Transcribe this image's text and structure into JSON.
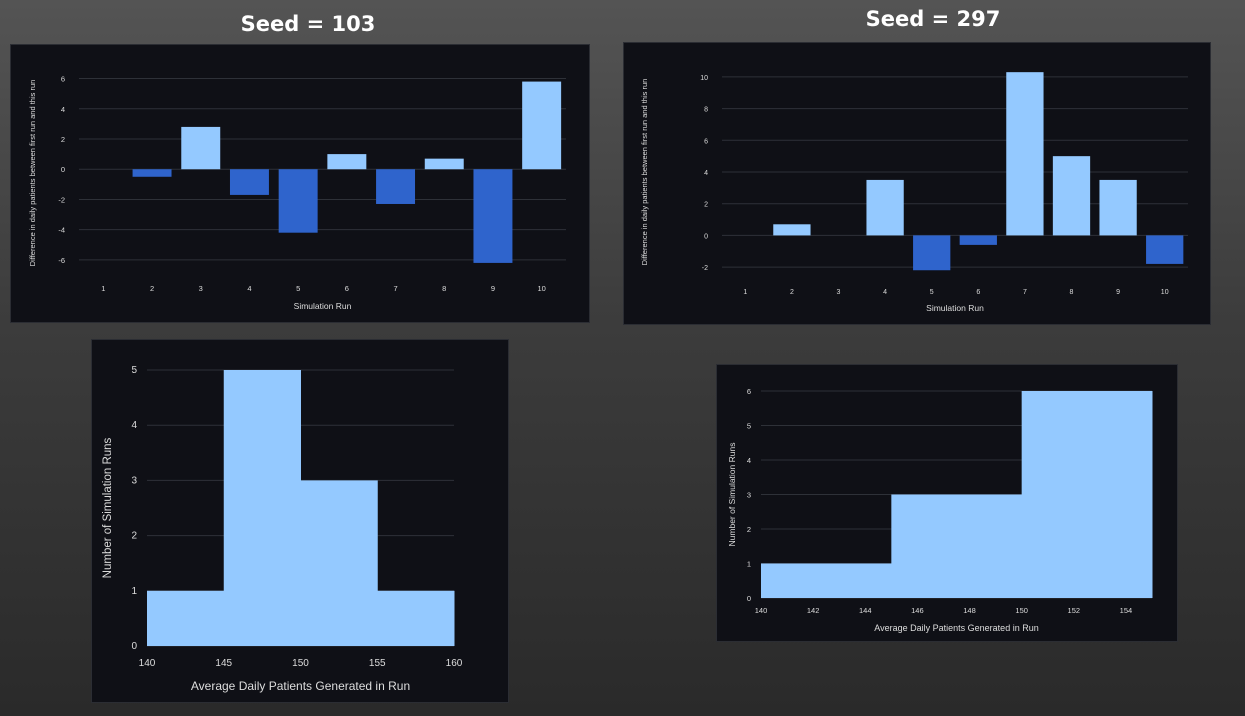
{
  "titles": {
    "left": "Seed = 103",
    "right": "Seed = 297"
  },
  "colors": {
    "positive": "#94c9ff",
    "negative": "#2f64cc",
    "grid": "#2e3138",
    "text": "#dddddd"
  },
  "chart_data": [
    {
      "type": "bar",
      "group": "Seed = 103",
      "xlabel": "Simulation Run",
      "ylabel": "Difference in daily patients between first run and this run",
      "categories": [
        "1",
        "2",
        "3",
        "4",
        "5",
        "6",
        "7",
        "8",
        "9",
        "10"
      ],
      "values": [
        0,
        -0.5,
        2.8,
        -1.7,
        -4.2,
        1.0,
        -2.3,
        0.7,
        -6.2,
        5.8
      ],
      "ylim": [
        -7,
        6.5
      ],
      "yticks": [
        -6,
        -4,
        -2,
        0,
        2,
        4,
        6
      ],
      "grid": true
    },
    {
      "type": "bar",
      "group": "Seed = 297",
      "xlabel": "Simulation Run",
      "ylabel": "Difference in daily patients between first run and this run",
      "categories": [
        "1",
        "2",
        "3",
        "4",
        "5",
        "6",
        "7",
        "8",
        "9",
        "10"
      ],
      "values": [
        0,
        0.7,
        0,
        3.5,
        -2.2,
        -0.6,
        10.3,
        5.0,
        3.5,
        -1.8
      ],
      "ylim": [
        -2.5,
        10.5
      ],
      "yticks": [
        -2,
        0,
        2,
        4,
        6,
        8,
        10
      ],
      "grid": true
    },
    {
      "type": "bar",
      "subtype": "histogram",
      "group": "Seed = 103",
      "xlabel": "Average Daily Patients Generated in Run",
      "ylabel": "Number of Simulation Runs",
      "bins": [
        [
          140,
          145
        ],
        [
          145,
          150
        ],
        [
          150,
          155
        ],
        [
          155,
          160
        ]
      ],
      "values": [
        1,
        5,
        3,
        1
      ],
      "xlim": [
        140,
        160
      ],
      "ylim": [
        0,
        5
      ],
      "xticks": [
        140,
        145,
        150,
        155,
        160
      ],
      "yticks": [
        0,
        1,
        2,
        3,
        4,
        5
      ],
      "grid": true
    },
    {
      "type": "bar",
      "subtype": "histogram",
      "group": "Seed = 297",
      "xlabel": "Average Daily Patients Generated in Run",
      "ylabel": "Number of Simulation Runs",
      "bins": [
        [
          140,
          145
        ],
        [
          145,
          150
        ],
        [
          150,
          155
        ]
      ],
      "values": [
        1,
        3,
        6
      ],
      "xlim": [
        140,
        155
      ],
      "ylim": [
        0,
        6
      ],
      "xticks": [
        140,
        142,
        144,
        146,
        148,
        150,
        152,
        154
      ],
      "yticks": [
        0,
        1,
        2,
        3,
        4,
        5,
        6
      ],
      "grid": true
    }
  ]
}
